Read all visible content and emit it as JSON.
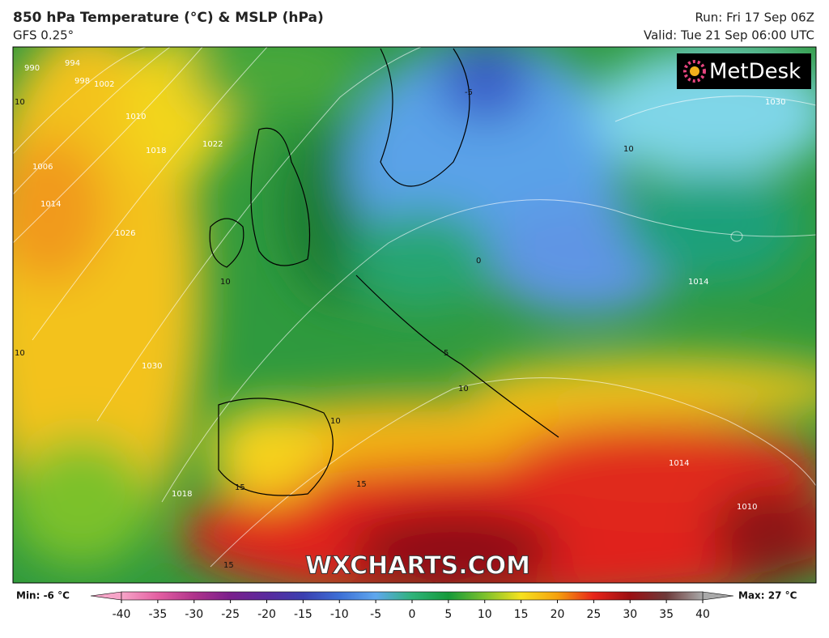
{
  "header": {
    "title": "850 hPa Temperature (°C) & MSLP (hPa)",
    "subtitle": "GFS 0.25°",
    "run": "Run: Fri 17 Sep 06Z",
    "valid": "Valid: Tue 21 Sep 06:00 UTC"
  },
  "map": {
    "logo": "MetDesk",
    "watermark": "WXCHARTS.COM",
    "contour_labels": [
      "990",
      "994",
      "998",
      "1002",
      "1006",
      "1010",
      "1014",
      "1018",
      "1022",
      "1026",
      "1030",
      "1030",
      "1014",
      "1014",
      "1010",
      "1018",
      "10",
      "10",
      "10",
      "10",
      "10",
      "10",
      "0",
      "-5",
      "5",
      "15",
      "15",
      "15"
    ]
  },
  "colorbar": {
    "min_label": "Min: -6 °C",
    "max_label": "Max: 27 °C",
    "ticks": [
      -40,
      -35,
      -30,
      -25,
      -20,
      -15,
      -10,
      -5,
      0,
      5,
      10,
      15,
      20,
      25,
      30,
      35,
      40
    ],
    "colors": [
      "#f6a5c8",
      "#e45fa2",
      "#b0348b",
      "#7a1f8c",
      "#5a2a9e",
      "#3b3fb0",
      "#3c6fd6",
      "#5fa7ee",
      "#2fb37a",
      "#159a3a",
      "#7cc12c",
      "#f7e21d",
      "#f5a10e",
      "#e8241a",
      "#9b0f12",
      "#6e3a3a",
      "#a9a9a9"
    ]
  }
}
